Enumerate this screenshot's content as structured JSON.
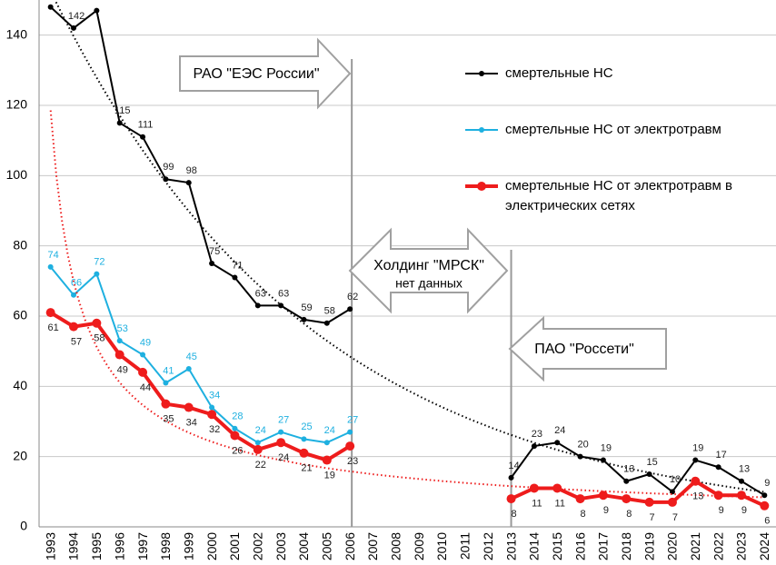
{
  "chart_data": {
    "type": "line",
    "categories": [
      "1993",
      "1994",
      "1995",
      "1996",
      "1997",
      "1998",
      "1999",
      "2000",
      "2001",
      "2002",
      "2003",
      "2004",
      "2005",
      "2006",
      "2007",
      "2008",
      "2009",
      "2010",
      "2011",
      "2012",
      "2013",
      "2014",
      "2015",
      "2016",
      "2017",
      "2018",
      "2019",
      "2020",
      "2021",
      "2022",
      "2023",
      "2024"
    ],
    "series": [
      {
        "name": "смертельные НС",
        "color": "#000000",
        "width": 2,
        "marker": 3,
        "label_pos": "above",
        "trend": "exponential",
        "values": [
          148,
          142,
          147,
          115,
          111,
          99,
          98,
          75,
          71,
          63,
          63,
          59,
          58,
          62,
          null,
          null,
          null,
          null,
          null,
          null,
          14,
          23,
          24,
          20,
          19,
          13,
          15,
          10,
          19,
          17,
          13,
          9
        ],
        "value_labels": [
          null,
          "142",
          null,
          "115",
          "111",
          "99",
          "98",
          "75",
          "71",
          "63",
          "63",
          "59",
          "58",
          "62",
          null,
          null,
          null,
          null,
          null,
          null,
          "14",
          "23",
          "24",
          "20",
          "19",
          "13",
          "15",
          "10",
          "19",
          "17",
          "13",
          "9"
        ]
      },
      {
        "name": "смертельные НС от электротравм",
        "color": "#1eb0e0",
        "width": 2,
        "marker": 3,
        "label_pos": "above",
        "values": [
          74,
          66,
          72,
          53,
          49,
          41,
          45,
          34,
          28,
          24,
          27,
          25,
          24,
          27,
          null,
          null,
          null,
          null,
          null,
          null,
          null,
          null,
          null,
          null,
          null,
          null,
          null,
          null,
          null,
          null,
          null,
          null
        ]
      },
      {
        "name": "смертельные НС от электротравм в электрических сетях",
        "color": "#ee1c1c",
        "width": 4,
        "marker": 5,
        "label_pos": "below",
        "trend": "power",
        "values": [
          61,
          57,
          58,
          49,
          44,
          35,
          34,
          32,
          26,
          22,
          24,
          21,
          19,
          23,
          null,
          null,
          null,
          null,
          null,
          null,
          8,
          11,
          11,
          8,
          9,
          8,
          7,
          7,
          13,
          9,
          9,
          6
        ]
      }
    ],
    "ylim": [
      0,
      150
    ],
    "yticks": [
      0,
      20,
      40,
      60,
      80,
      100,
      120,
      140
    ],
    "grid": true,
    "annotations": [
      "РАО \"ЕЭС России\"",
      "Холдинг \"МРСК\"",
      "нет данных",
      "ПАО \"Россети\""
    ],
    "vlines": [
      "2006",
      "2013"
    ]
  }
}
